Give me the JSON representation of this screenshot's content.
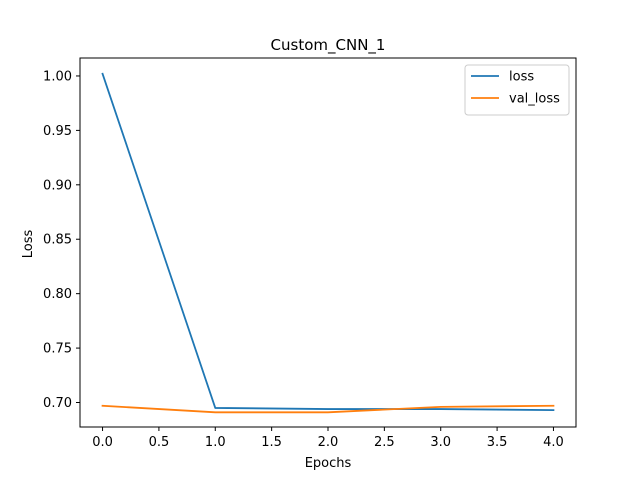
{
  "chart_data": {
    "type": "line",
    "title": "Custom_CNN_1",
    "xlabel": "Epochs",
    "ylabel": "Loss",
    "x": [
      0,
      1,
      2,
      3,
      4
    ],
    "series": [
      {
        "name": "loss",
        "color": "#1f77b4",
        "values": [
          1.002,
          0.695,
          0.694,
          0.694,
          0.693
        ]
      },
      {
        "name": "val_loss",
        "color": "#ff7f0e",
        "values": [
          0.697,
          0.691,
          0.691,
          0.696,
          0.697
        ]
      }
    ],
    "xlim": [
      -0.2,
      4.2
    ],
    "ylim": [
      0.6775,
      1.0165
    ],
    "xticks": [
      "0.0",
      "0.5",
      "1.0",
      "1.5",
      "2.0",
      "2.5",
      "3.0",
      "3.5",
      "4.0"
    ],
    "yticks": [
      "0.70",
      "0.75",
      "0.80",
      "0.85",
      "0.90",
      "0.95",
      "1.00"
    ],
    "grid": false,
    "legend_position": "top-right"
  }
}
